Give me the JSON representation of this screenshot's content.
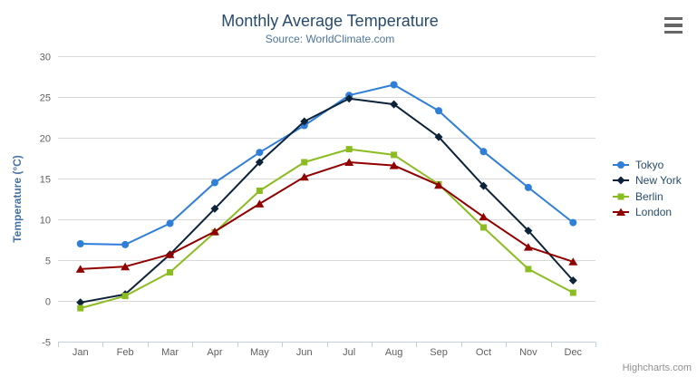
{
  "credits": "Highcharts.com",
  "icons": {
    "menu": "hamburger-icon",
    "legend_markers": [
      "circle-marker-icon",
      "diamond-marker-icon",
      "square-marker-icon",
      "triangle-marker-icon"
    ]
  },
  "styles": {
    "grid_color": "#d8d8d8",
    "axis_line_color": "#c0d0e0",
    "tick_color": "#c0d0e0",
    "axis_label_color": "#606060",
    "title_color": "#274b6d",
    "subtitle_color": "#4d759e",
    "axis_title_color": "#4572a7",
    "legend_text_color": "#274b6d",
    "credits_color": "#909090",
    "background": "#ffffff"
  },
  "chart_data": {
    "type": "line",
    "title": "Monthly Average Temperature",
    "subtitle": "Source: WorldClimate.com",
    "xlabel": "",
    "ylabel": "Temperature (°C)",
    "ylim": [
      -5,
      30
    ],
    "ytick_interval": 5,
    "yticks": [
      -5,
      0,
      5,
      10,
      15,
      20,
      25,
      30
    ],
    "grid": true,
    "legend_position": "right-middle",
    "categories": [
      "Jan",
      "Feb",
      "Mar",
      "Apr",
      "May",
      "Jun",
      "Jul",
      "Aug",
      "Sep",
      "Oct",
      "Nov",
      "Dec"
    ],
    "series": [
      {
        "name": "Tokyo",
        "color": "#2f7ed8",
        "marker": "circle",
        "values": [
          7.0,
          6.9,
          9.5,
          14.5,
          18.2,
          21.5,
          25.2,
          26.5,
          23.3,
          18.3,
          13.9,
          9.6
        ]
      },
      {
        "name": "New York",
        "color": "#0d233a",
        "marker": "diamond",
        "values": [
          -0.2,
          0.8,
          5.7,
          11.3,
          17.0,
          22.0,
          24.8,
          24.1,
          20.1,
          14.1,
          8.6,
          2.5
        ]
      },
      {
        "name": "Berlin",
        "color": "#8bbc21",
        "marker": "square",
        "values": [
          -0.9,
          0.6,
          3.5,
          8.4,
          13.5,
          17.0,
          18.6,
          17.9,
          14.3,
          9.0,
          3.9,
          1.0
        ]
      },
      {
        "name": "London",
        "color": "#910000",
        "marker": "triangle",
        "values": [
          3.9,
          4.2,
          5.7,
          8.5,
          11.9,
          15.2,
          17.0,
          16.6,
          14.2,
          10.3,
          6.6,
          4.8
        ]
      }
    ]
  }
}
